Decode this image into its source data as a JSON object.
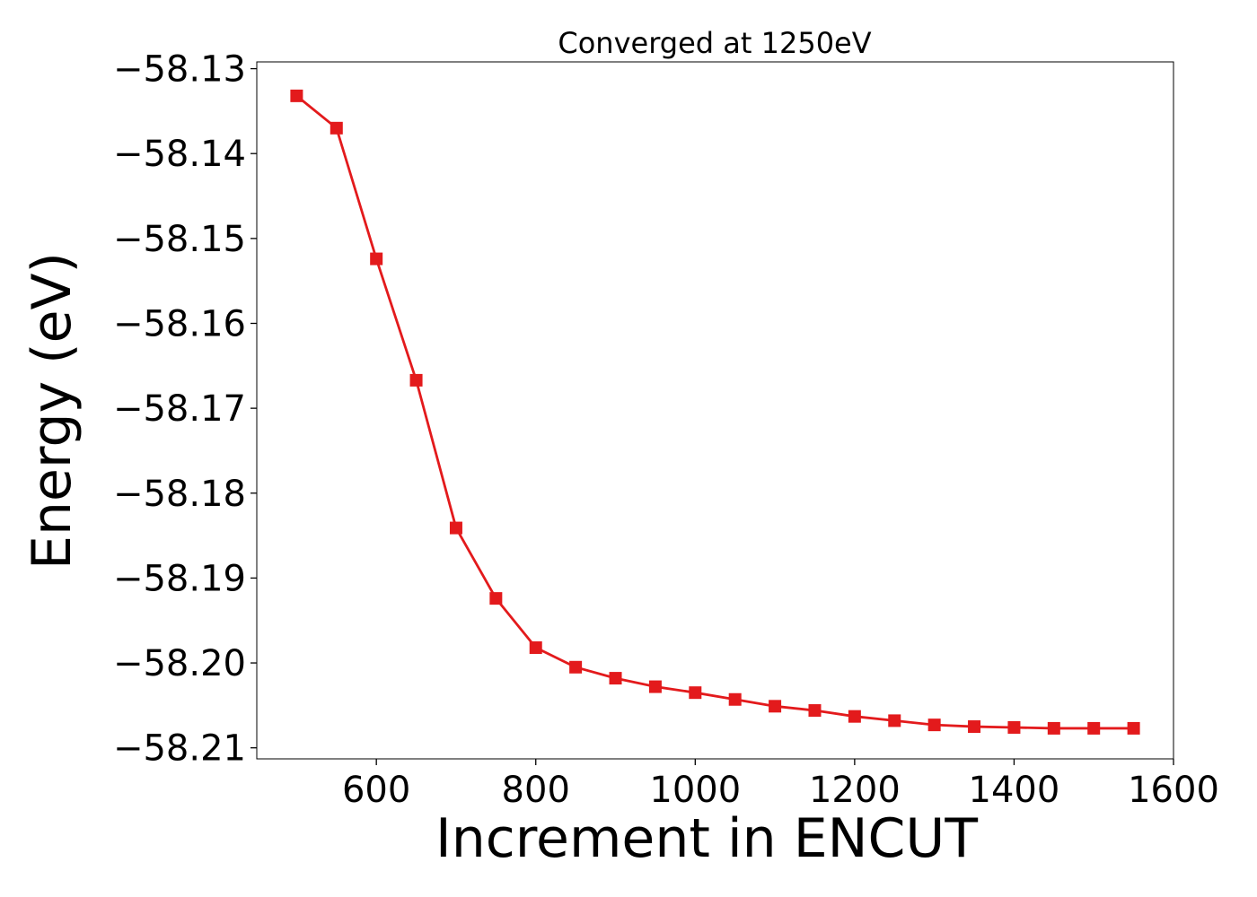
{
  "chart_data": {
    "type": "line",
    "title": "Converged at 1250eV",
    "xlabel": "Increment in ENCUT",
    "ylabel": "Energy (eV)",
    "xlim": [
      450,
      1600
    ],
    "ylim": [
      -58.2113,
      -58.1292
    ],
    "xticks": [
      600,
      800,
      1000,
      1200,
      1400,
      1600
    ],
    "yticks": [
      -58.13,
      -58.14,
      -58.15,
      -58.16,
      -58.17,
      -58.18,
      -58.19,
      -58.2,
      -58.21
    ],
    "ytick_labels": [
      "−58.13",
      "−58.14",
      "−58.15",
      "−58.16",
      "−58.17",
      "−58.18",
      "−58.19",
      "−58.20",
      "−58.21"
    ],
    "grid": false,
    "series": [
      {
        "color": "#e31a1c",
        "marker": "square",
        "x": [
          500,
          550,
          600,
          650,
          700,
          750,
          800,
          850,
          900,
          950,
          1000,
          1050,
          1100,
          1150,
          1200,
          1250,
          1300,
          1350,
          1400,
          1450,
          1500,
          1550
        ],
        "y": [
          -58.1332,
          -58.137,
          -58.1524,
          -58.1667,
          -58.1841,
          -58.1924,
          -58.1982,
          -58.2005,
          -58.2018,
          -58.2028,
          -58.2035,
          -58.2043,
          -58.2051,
          -58.2056,
          -58.2063,
          -58.2068,
          -58.2073,
          -58.2075,
          -58.2076,
          -58.2077,
          -58.2077,
          -58.2077
        ]
      }
    ]
  }
}
